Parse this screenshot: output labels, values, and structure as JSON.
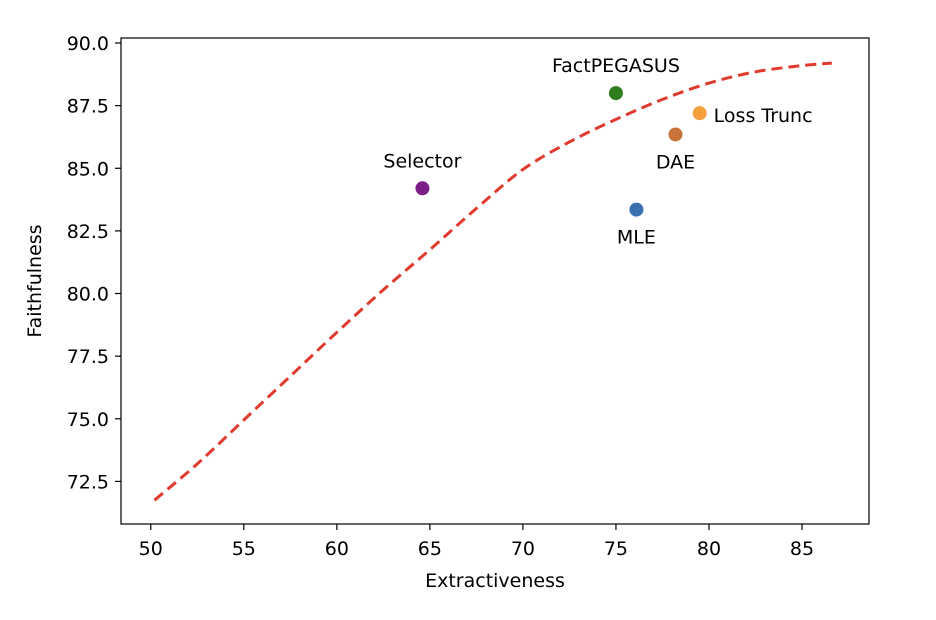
{
  "chart_data": {
    "type": "scatter",
    "title": "",
    "xlabel": "Extractiveness",
    "ylabel": "Faithfulness",
    "xlim": [
      48.4,
      88.6
    ],
    "ylim": [
      70.8,
      90.2
    ],
    "xticks": [
      50,
      55,
      60,
      65,
      70,
      75,
      80,
      85
    ],
    "xtick_labels": [
      "50",
      "55",
      "60",
      "65",
      "70",
      "75",
      "80",
      "85"
    ],
    "yticks": [
      72.5,
      75.0,
      77.5,
      80.0,
      82.5,
      85.0,
      87.5,
      90.0
    ],
    "ytick_labels": [
      "72.5",
      "75.0",
      "77.5",
      "80.0",
      "82.5",
      "85.0",
      "87.5",
      "90.0"
    ],
    "grid": false,
    "points": [
      {
        "name": "Selector",
        "x": 64.6,
        "y": 84.2,
        "color": "#7b1f86",
        "label_pos": "above"
      },
      {
        "name": "FactPEGASUS",
        "x": 75.0,
        "y": 88.0,
        "color": "#2e7d1f",
        "label_pos": "above"
      },
      {
        "name": "Loss Trunc",
        "x": 79.5,
        "y": 87.2,
        "color": "#f4a03a",
        "label_pos": "right"
      },
      {
        "name": "DAE",
        "x": 78.2,
        "y": 86.35,
        "color": "#c8733a",
        "label_pos": "below"
      },
      {
        "name": "MLE",
        "x": 76.1,
        "y": 83.35,
        "color": "#3a6fb0",
        "label_pos": "below"
      }
    ],
    "curve": {
      "name": "frontier",
      "style": "dashed",
      "color": "#e03a2f",
      "x": [
        50.2,
        52.5,
        55.0,
        57.5,
        60.0,
        62.5,
        65.0,
        67.5,
        70.0,
        72.5,
        75.0,
        77.5,
        80.0,
        82.5,
        85.0,
        86.6
      ],
      "y": [
        71.75,
        73.2,
        74.95,
        76.7,
        78.45,
        80.15,
        81.75,
        83.4,
        84.95,
        86.05,
        86.95,
        87.75,
        88.4,
        88.85,
        89.1,
        89.2
      ]
    }
  }
}
